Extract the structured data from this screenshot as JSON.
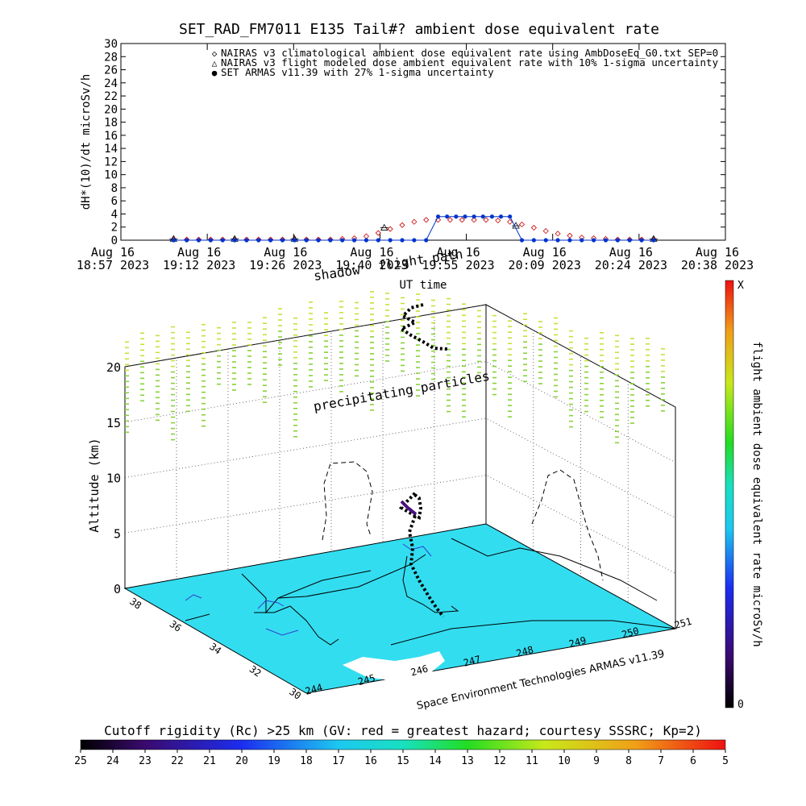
{
  "title": "SET_RAD_FM7011  E135 Tail#? ambient dose equivalent rate",
  "top_plot": {
    "ylabel": "dH*(10)/dt microSv/h",
    "xlabel": "UT time",
    "legend": [
      {
        "symbol": "◇",
        "text": "NAIRAS v3 climatological ambient dose equivalent rate using AmbDoseEq_G0.txt SEP=0",
        "color": "#cc0000"
      },
      {
        "symbol": "△",
        "text": "NAIRAS v3 flight modeled dose ambient equivalent rate with 10% 1-sigma uncertainty",
        "color": "#000000"
      },
      {
        "symbol": "●",
        "text": "SET ARMAS v11.39 with 27% 1-sigma uncertainty",
        "color": "#0033cc"
      }
    ],
    "y_ticks": [
      "0",
      "2",
      "4",
      "6",
      "8",
      "10",
      "12",
      "14",
      "16",
      "18",
      "20",
      "22",
      "24",
      "26",
      "28",
      "30"
    ],
    "x_ticks": [
      {
        "day": "Aug 16",
        "time": "18:57 2023"
      },
      {
        "day": "Aug 16",
        "time": "19:12 2023"
      },
      {
        "day": "Aug 16",
        "time": "19:26 2023"
      },
      {
        "day": "Aug 16",
        "time": "19:40 2023"
      },
      {
        "day": "Aug 16",
        "time": "19:55 2023"
      },
      {
        "day": "Aug 16",
        "time": "20:09 2023"
      },
      {
        "day": "Aug 16",
        "time": "20:24 2023"
      },
      {
        "day": "Aug 16",
        "time": "20:38 2023"
      }
    ]
  },
  "chart_data": {
    "type": "scatter",
    "ylim": [
      0,
      30
    ],
    "x_unit": "minutes after 18:57 UT, Aug 16 2023",
    "xlim": [
      0,
      101
    ],
    "series": [
      {
        "name": "NAIRAS v3 climatological ambient dose equivalent rate using AmbDoseEq_G0.txt SEP=0",
        "color": "#cc0000",
        "marker": "diamond",
        "points": [
          [
            8.8,
            0.1
          ],
          [
            11,
            0.1
          ],
          [
            13,
            0.1
          ],
          [
            15,
            0.1
          ],
          [
            17,
            0.1
          ],
          [
            19,
            0.1
          ],
          [
            21,
            0.1
          ],
          [
            23,
            0.1
          ],
          [
            25,
            0.1
          ],
          [
            27,
            0.1
          ],
          [
            29,
            0.1
          ],
          [
            31,
            0.1
          ],
          [
            33,
            0.1
          ],
          [
            35,
            0.1
          ],
          [
            37,
            0.2
          ],
          [
            39,
            0.3
          ],
          [
            41,
            0.6
          ],
          [
            43,
            1.1
          ],
          [
            45,
            1.7
          ],
          [
            47,
            2.3
          ],
          [
            49,
            2.8
          ],
          [
            51,
            3.1
          ],
          [
            53,
            3.1
          ],
          [
            55,
            3.1
          ],
          [
            57,
            3.1
          ],
          [
            59,
            3.1
          ],
          [
            61,
            3.1
          ],
          [
            63,
            3.0
          ],
          [
            65,
            2.8
          ],
          [
            67,
            2.4
          ],
          [
            69,
            1.9
          ],
          [
            71,
            1.4
          ],
          [
            73,
            1.0
          ],
          [
            75,
            0.7
          ],
          [
            77,
            0.4
          ],
          [
            79,
            0.3
          ],
          [
            81,
            0.2
          ],
          [
            83,
            0.1
          ],
          [
            85,
            0.1
          ],
          [
            87,
            0.1
          ],
          [
            89,
            0.1
          ]
        ]
      },
      {
        "name": "NAIRAS v3 flight modeled dose ambient equivalent rate with 10% 1-sigma uncertainty",
        "color": "#000000",
        "marker": "triangle",
        "points": [
          [
            8.8,
            0.2
          ],
          [
            19,
            0.2
          ],
          [
            29,
            0.2
          ],
          [
            44,
            1.9
          ],
          [
            66,
            2.2
          ],
          [
            89,
            0.2
          ]
        ]
      },
      {
        "name": "SET ARMAS v11.39 with 27% 1-sigma uncertainty",
        "color": "#0033cc",
        "marker": "circle",
        "points": [
          [
            8.8,
            0
          ],
          [
            11,
            0
          ],
          [
            13,
            0
          ],
          [
            15,
            0
          ],
          [
            17,
            0
          ],
          [
            19,
            0
          ],
          [
            21,
            0
          ],
          [
            23,
            0
          ],
          [
            25,
            0
          ],
          [
            27,
            0
          ],
          [
            29,
            0
          ],
          [
            31,
            0
          ],
          [
            33,
            0
          ],
          [
            35,
            0
          ],
          [
            37,
            0
          ],
          [
            39,
            0
          ],
          [
            41,
            0
          ],
          [
            43,
            0
          ],
          [
            45,
            0
          ],
          [
            47,
            0
          ],
          [
            49,
            0
          ],
          [
            51,
            0
          ],
          [
            53,
            3.6
          ],
          [
            54.5,
            3.6
          ],
          [
            56,
            3.6
          ],
          [
            57.5,
            3.6
          ],
          [
            59,
            3.6
          ],
          [
            60.5,
            3.6
          ],
          [
            62,
            3.6
          ],
          [
            63.5,
            3.6
          ],
          [
            65,
            3.6
          ],
          [
            67,
            0
          ],
          [
            69,
            0
          ],
          [
            71,
            0
          ],
          [
            73,
            0
          ],
          [
            75,
            0
          ],
          [
            77,
            0
          ],
          [
            79,
            0
          ],
          [
            81,
            0
          ],
          [
            83,
            0
          ],
          [
            85,
            0
          ],
          [
            87,
            0
          ],
          [
            89,
            0
          ]
        ]
      }
    ]
  },
  "scene3d": {
    "zlabel": "Altitude (km)",
    "z_ticks": [
      "0",
      "5",
      "10",
      "15",
      "20"
    ],
    "lat_ticks": [
      "38",
      "36",
      "34",
      "32",
      "30"
    ],
    "lon_ticks": [
      "244",
      "245",
      "246",
      "247",
      "248",
      "249",
      "250",
      "251"
    ],
    "annotation_precip": "precipitating particles",
    "annotation_shadow": "shadow",
    "annotation_flightpath": "flight path",
    "credit": "Space Environment Technologies ARMAS v11.39"
  },
  "colorbar_right": {
    "label": "flight ambient dose equivalent rate microSv/h",
    "top": "X",
    "bottom": "0"
  },
  "colorbar_bottom": {
    "label": "Cutoff rigidity (Rc) >25 km (GV: red = greatest hazard; courtesy SSSRC; Kp=2)",
    "ticks": [
      "25",
      "24",
      "23",
      "22",
      "21",
      "20",
      "19",
      "18",
      "17",
      "16",
      "15",
      "14",
      "13",
      "12",
      "11",
      "10",
      "9",
      "8",
      "7",
      "6",
      "5"
    ]
  },
  "colors": {
    "cutoff_surface": "#33ddf0",
    "precip_green": "#88d23a",
    "precip_yellow": "#c8e03a"
  }
}
